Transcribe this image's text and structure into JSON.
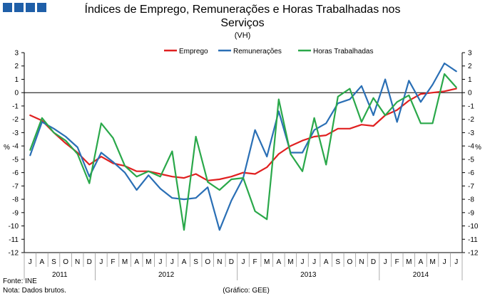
{
  "logo_colors": [
    "#1f5fa8",
    "#1f5fa8",
    "#1f5fa8",
    "#1f5fa8"
  ],
  "chart_data": {
    "type": "line",
    "title_line1": "Índices de Emprego, Remunerações e Horas Trabalhadas nos",
    "title_line2": "Serviços",
    "subtitle": "(VH)",
    "ylabel_left": "%",
    "ylabel_right": "%",
    "ylim": [
      -12,
      3
    ],
    "yticks": [
      3,
      2,
      1,
      0,
      -1,
      -2,
      -3,
      -4,
      -5,
      -6,
      -7,
      -8,
      -9,
      -10,
      -11,
      -12
    ],
    "grid": false,
    "legend_position": "top",
    "categories": [
      "J",
      "A",
      "S",
      "O",
      "N",
      "D",
      "J",
      "F",
      "M",
      "A",
      "M",
      "J",
      "J",
      "A",
      "S",
      "O",
      "N",
      "D",
      "J",
      "F",
      "M",
      "A",
      "M",
      "J",
      "J",
      "A",
      "S",
      "O",
      "N",
      "D",
      "J",
      "F",
      "M",
      "A",
      "M",
      "J",
      "J"
    ],
    "years": [
      {
        "label": "2011",
        "start": 0,
        "end": 5
      },
      {
        "label": "2012",
        "start": 6,
        "end": 17
      },
      {
        "label": "2013",
        "start": 18,
        "end": 29
      },
      {
        "label": "2014",
        "start": 30,
        "end": 36
      }
    ],
    "series": [
      {
        "name": "Emprego",
        "color": "#e02020",
        "values": [
          -1.7,
          -2.1,
          -3.0,
          -3.8,
          -4.5,
          -5.4,
          -4.8,
          -5.3,
          -5.5,
          -5.9,
          -5.9,
          -6.1,
          -6.3,
          -6.4,
          -6.1,
          -6.6,
          -6.5,
          -6.3,
          -6.0,
          -6.1,
          -5.6,
          -4.6,
          -4.0,
          -3.6,
          -3.3,
          -3.2,
          -2.7,
          -2.7,
          -2.4,
          -2.5,
          -1.7,
          -1.3,
          -0.6,
          -0.1,
          0.0,
          0.1,
          0.3
        ]
      },
      {
        "name": "Remunerações",
        "color": "#2a6fb5",
        "values": [
          -4.7,
          -2.2,
          -2.7,
          -3.3,
          -4.1,
          -6.3,
          -4.5,
          -5.2,
          -6.0,
          -7.3,
          -6.2,
          -7.2,
          -7.9,
          -8.0,
          -7.9,
          -7.1,
          -10.3,
          -8.1,
          -6.4,
          -2.8,
          -4.8,
          -1.4,
          -4.5,
          -4.5,
          -2.8,
          -2.3,
          -0.8,
          -0.5,
          0.5,
          -1.7,
          1.0,
          -2.2,
          0.9,
          -0.7,
          0.6,
          2.2,
          1.6
        ]
      },
      {
        "name": "Horas Trabalhadas",
        "color": "#2aa84a",
        "values": [
          -4.3,
          -1.9,
          -3.0,
          -3.6,
          -4.6,
          -6.8,
          -2.3,
          -3.4,
          -5.5,
          -6.3,
          -5.9,
          -6.3,
          -4.4,
          -10.3,
          -3.3,
          -6.7,
          -7.3,
          -6.5,
          -6.4,
          -8.9,
          -9.5,
          -0.5,
          -4.6,
          -5.9,
          -1.9,
          -5.4,
          -0.3,
          0.3,
          -2.2,
          -0.4,
          -1.7,
          -0.7,
          -0.2,
          -2.3,
          -2.3,
          1.4,
          0.4
        ]
      }
    ]
  },
  "footnote_line1": "Fonte: INE",
  "footnote_line2": "Nota: Dados brutos.",
  "credit": "(Gráfico: GEE)"
}
